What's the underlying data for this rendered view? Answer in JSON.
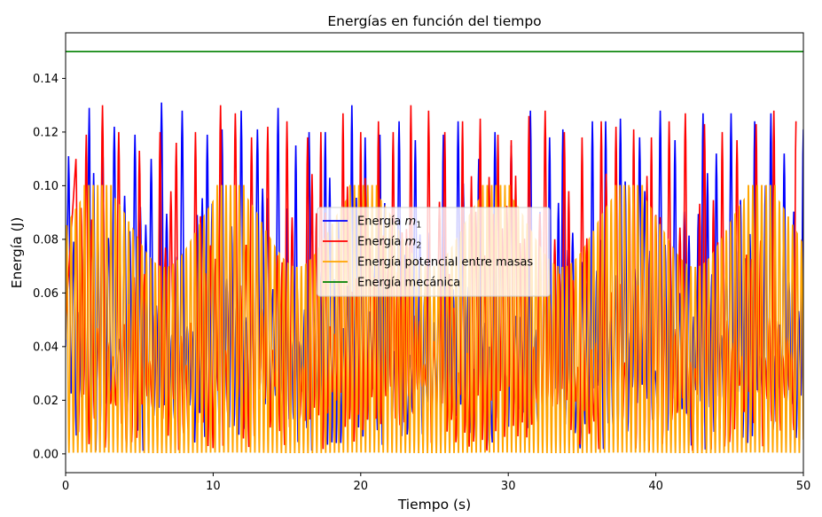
{
  "chart_data": {
    "type": "line",
    "title": "Energías en función del tiempo",
    "xlabel": "Tiempo (s)",
    "ylabel": "Energía (J)",
    "xlim": [
      0,
      50
    ],
    "ylim": [
      -0.007,
      0.157
    ],
    "grid": false,
    "legend_position": "center",
    "x_ticks": [
      0,
      10,
      20,
      30,
      40,
      50
    ],
    "x_tick_labels": [
      "0",
      "10",
      "20",
      "30",
      "40",
      "50"
    ],
    "y_ticks": [
      0.0,
      0.02,
      0.04,
      0.06,
      0.08,
      0.1,
      0.12,
      0.14
    ],
    "y_tick_labels": [
      "0.00",
      "0.02",
      "0.04",
      "0.06",
      "0.08",
      "0.10",
      "0.12",
      "0.14"
    ],
    "series": [
      {
        "name": "Energía m1",
        "legend_base": "Energía ",
        "legend_math": "m",
        "legend_sub": "1",
        "color": "#0000ff",
        "approx_model": {
          "description": "oscillating kinetic energy, 0 to ~0.13 J",
          "peak_times": [
            0.2,
            1.6,
            2.5,
            3.3,
            4.7,
            5.8,
            6.5,
            7.9,
            9.6,
            10.6,
            11.9,
            13.0,
            14.4,
            15.6,
            16.5,
            17.6,
            19.4,
            20.3,
            21.3,
            22.6,
            23.7,
            25.6,
            26.6,
            28.0,
            29.1,
            30.2,
            31.5,
            32.8,
            33.7,
            35.7,
            36.6,
            37.6,
            38.9,
            40.3,
            41.3,
            43.2,
            44.1,
            45.1,
            46.7,
            47.8,
            48.7,
            50.0
          ],
          "peak_values": [
            0.111,
            0.129,
            0.12,
            0.122,
            0.119,
            0.11,
            0.131,
            0.128,
            0.119,
            0.121,
            0.128,
            0.121,
            0.129,
            0.115,
            0.12,
            0.12,
            0.13,
            0.118,
            0.119,
            0.124,
            0.117,
            0.119,
            0.124,
            0.11,
            0.12,
            0.115,
            0.128,
            0.118,
            0.121,
            0.124,
            0.124,
            0.125,
            0.118,
            0.128,
            0.117,
            0.127,
            0.112,
            0.127,
            0.124,
            0.127,
            0.112,
            0.121
          ]
        }
      },
      {
        "name": "Energía m2",
        "legend_base": "Energía ",
        "legend_math": "m",
        "legend_sub": "2",
        "color": "#ff0000",
        "approx_model": {
          "description": "oscillating kinetic energy, 0 to ~0.13 J",
          "peak_times": [
            0.7,
            1.4,
            2.5,
            3.6,
            5.0,
            6.4,
            7.5,
            8.8,
            10.5,
            11.5,
            12.6,
            13.7,
            15.0,
            16.4,
            17.3,
            18.8,
            20.0,
            21.2,
            22.2,
            23.4,
            24.6,
            25.7,
            26.9,
            28.1,
            29.3,
            30.2,
            31.4,
            32.5,
            33.8,
            35.0,
            36.3,
            37.3,
            38.5,
            39.7,
            40.9,
            42.0,
            43.3,
            44.5,
            45.5,
            46.8,
            48.0,
            49.5
          ],
          "peak_values": [
            0.11,
            0.119,
            0.13,
            0.12,
            0.113,
            0.12,
            0.116,
            0.12,
            0.13,
            0.127,
            0.118,
            0.122,
            0.124,
            0.118,
            0.12,
            0.127,
            0.12,
            0.124,
            0.12,
            0.13,
            0.128,
            0.12,
            0.124,
            0.125,
            0.119,
            0.117,
            0.126,
            0.128,
            0.12,
            0.118,
            0.124,
            0.122,
            0.121,
            0.118,
            0.124,
            0.127,
            0.123,
            0.12,
            0.117,
            0.123,
            0.128,
            0.124
          ]
        }
      },
      {
        "name": "Energía potencial entre masas",
        "legend_text": "Energía potencial entre masas",
        "color": "#ffa500",
        "approx_model": {
          "description": "fast oscillation, 0 to 0.10 J, about 6.7 oscillations per 2 s",
          "max": 0.1,
          "min": 0.0,
          "period_s": 0.3
        }
      },
      {
        "name": "Energía mecánica",
        "legend_text": "Energía mecánica",
        "color": "#008000",
        "approx_model": {
          "description": "constant total mechanical energy",
          "constant": 0.15
        }
      }
    ]
  }
}
